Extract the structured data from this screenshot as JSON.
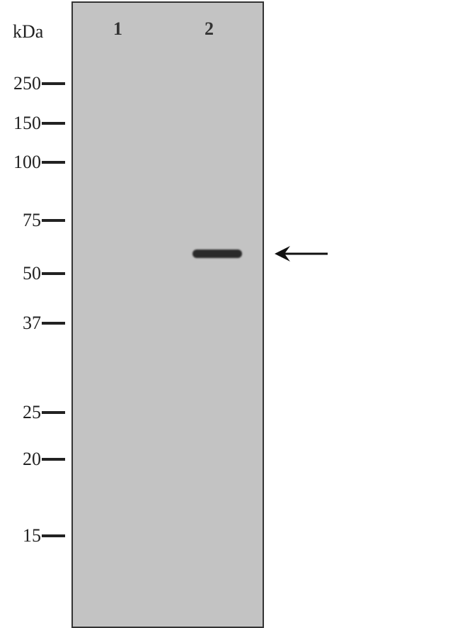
{
  "unit_label": "kDa",
  "lanes": [
    "1",
    "2"
  ],
  "markers": [
    "250",
    "150",
    "100",
    "75",
    "50",
    "37",
    "25",
    "20",
    "15"
  ],
  "band": {
    "lane": "2",
    "approx_kda": 58
  },
  "arrow_icon": "left-arrow-icon",
  "colors": {
    "membrane": "#c3c3c3",
    "band": "#2a2a2a"
  }
}
